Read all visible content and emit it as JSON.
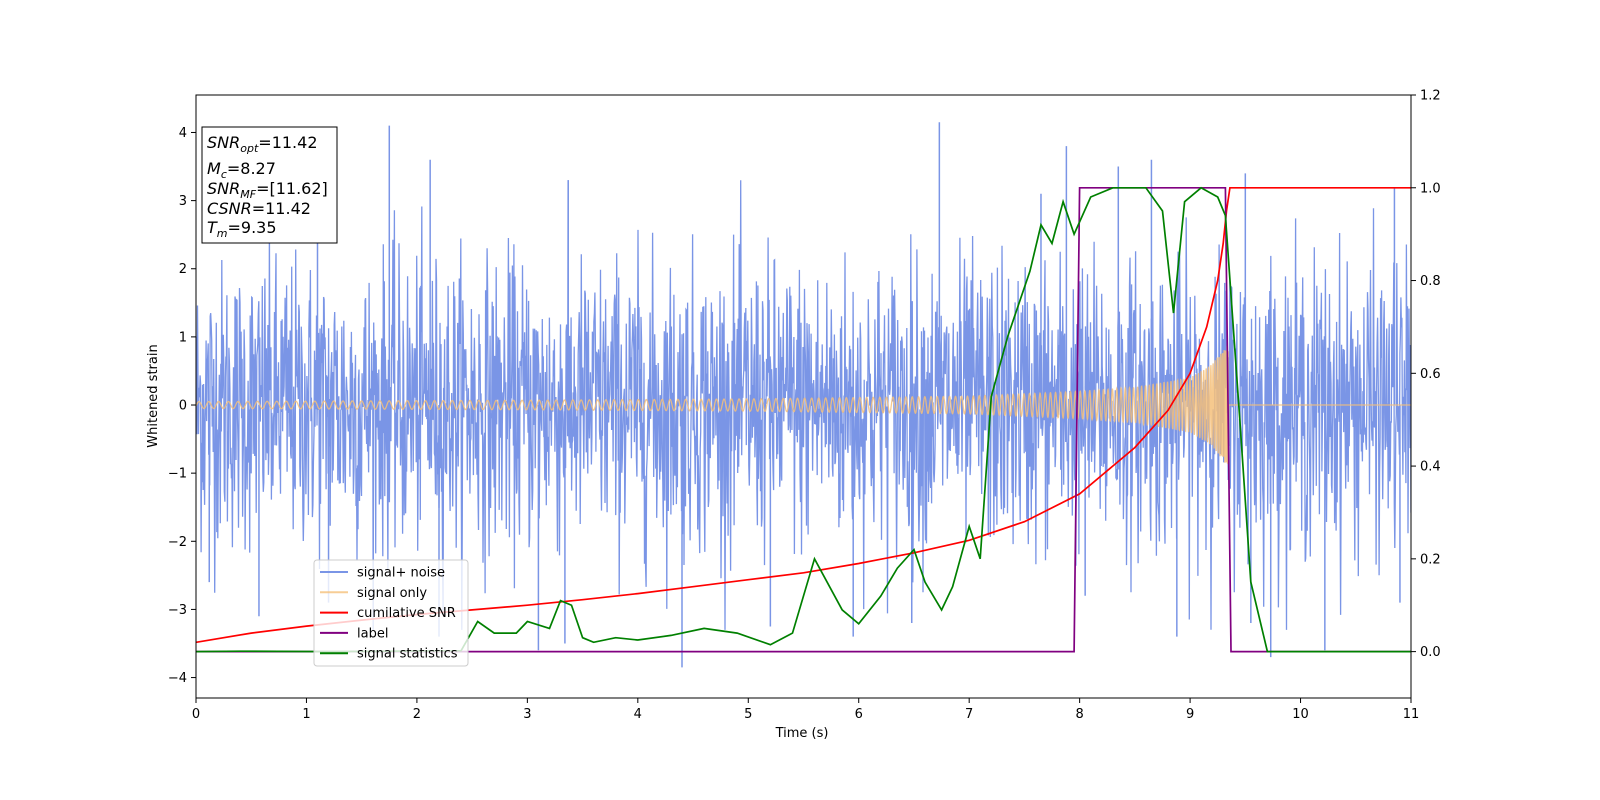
{
  "chart_data": {
    "type": "line",
    "xlabel": "Time (s)",
    "ylabel": "Whitened strain",
    "xlim": [
      0,
      11
    ],
    "ylim_left": [
      -4.3,
      4.55
    ],
    "ylim_right": [
      -0.1,
      1.2
    ],
    "x_ticks": [
      "0",
      "1",
      "2",
      "3",
      "4",
      "5",
      "6",
      "7",
      "8",
      "9",
      "10",
      "11"
    ],
    "y_ticks_left": [
      "−4",
      "−3",
      "−2",
      "−1",
      "0",
      "1",
      "2",
      "3",
      "4"
    ],
    "y_ticks_right": [
      "0.0",
      "0.2",
      "0.4",
      "0.6",
      "0.8",
      "1.0",
      "1.2"
    ],
    "grid": false,
    "legend_position": "lower-left",
    "annotation": {
      "snr_opt": {
        "sym": "SNR",
        "sub": "opt",
        "value": "=11.42"
      },
      "mc": {
        "sym": "M",
        "sub": "c",
        "value": "=8.27"
      },
      "snr_mf": {
        "sym": "SNR",
        "sub": "MF",
        "value": "=[11.62]"
      },
      "csnr": {
        "sym": "CSNR",
        "value": "=11.42"
      },
      "tm": {
        "sym": "T",
        "sub": "m",
        "value": "=9.35"
      }
    },
    "series": [
      {
        "name": "signal+ noise",
        "color": "#7a95e6",
        "axis": "left",
        "description": "whitened noise, std ~1.1 across full range",
        "spikes": [
          [
            0.12,
            -2.6
          ],
          [
            0.57,
            -3.1
          ],
          [
            1.1,
            2.9
          ],
          [
            1.2,
            -2.9
          ],
          [
            1.75,
            4.1
          ],
          [
            2.12,
            3.6
          ],
          [
            2.2,
            -3.4
          ],
          [
            3.1,
            -3.6
          ],
          [
            3.37,
            3.3
          ],
          [
            3.34,
            -3.5
          ],
          [
            4.4,
            -3.85
          ],
          [
            5.2,
            -3.25
          ],
          [
            5.95,
            -3.4
          ],
          [
            6.73,
            4.15
          ],
          [
            6.48,
            -3.2
          ],
          [
            7.65,
            3.1
          ],
          [
            7.88,
            3.8
          ],
          [
            8.05,
            -2.8
          ],
          [
            8.35,
            3.5
          ],
          [
            8.65,
            3.6
          ],
          [
            8.88,
            -3.4
          ],
          [
            9.5,
            3.4
          ],
          [
            9.55,
            -3.2
          ],
          [
            9.73,
            -3.7
          ],
          [
            10.22,
            -3.6
          ],
          [
            10.85,
            3.2
          ],
          [
            10.9,
            -2.9
          ]
        ]
      },
      {
        "name": "signal only",
        "color": "#f5c07a",
        "axis": "left",
        "description": "chirp from t=0 with amplitude growing until merger at 9.35 s, then ~0",
        "merger_time": 9.35,
        "amplitude_points": [
          [
            0,
            0.05
          ],
          [
            3,
            0.07
          ],
          [
            5,
            0.09
          ],
          [
            7,
            0.13
          ],
          [
            8,
            0.2
          ],
          [
            8.5,
            0.26
          ],
          [
            9,
            0.4
          ],
          [
            9.2,
            0.6
          ],
          [
            9.33,
            0.88
          ]
        ]
      },
      {
        "name": "cumilative SNR",
        "color": "#ff0000",
        "axis": "right",
        "points": [
          [
            0,
            0.02
          ],
          [
            0.5,
            0.04
          ],
          [
            1,
            0.055
          ],
          [
            1.5,
            0.068
          ],
          [
            2,
            0.08
          ],
          [
            2.5,
            0.09
          ],
          [
            3,
            0.1
          ],
          [
            3.5,
            0.112
          ],
          [
            4,
            0.125
          ],
          [
            4.5,
            0.14
          ],
          [
            5,
            0.155
          ],
          [
            5.5,
            0.17
          ],
          [
            6,
            0.19
          ],
          [
            6.5,
            0.213
          ],
          [
            7,
            0.24
          ],
          [
            7.5,
            0.28
          ],
          [
            8,
            0.34
          ],
          [
            8.5,
            0.44
          ],
          [
            8.8,
            0.52
          ],
          [
            9,
            0.6
          ],
          [
            9.15,
            0.7
          ],
          [
            9.25,
            0.8
          ],
          [
            9.3,
            0.88
          ],
          [
            9.33,
            0.95
          ],
          [
            9.36,
            1.0
          ],
          [
            11,
            1.0
          ]
        ]
      },
      {
        "name": "label",
        "color": "#800080",
        "axis": "right",
        "points": [
          [
            0,
            0
          ],
          [
            7.95,
            0
          ],
          [
            8.0,
            1
          ],
          [
            9.32,
            1
          ],
          [
            9.37,
            0
          ],
          [
            11,
            0
          ]
        ]
      },
      {
        "name": "signal statistics",
        "color": "#008000",
        "axis": "right",
        "points": [
          [
            0,
            0.0
          ],
          [
            0.4,
            0.001
          ],
          [
            1.2,
            0.0
          ],
          [
            2.4,
            0.002
          ],
          [
            2.55,
            0.065
          ],
          [
            2.7,
            0.04
          ],
          [
            2.9,
            0.04
          ],
          [
            3.0,
            0.065
          ],
          [
            3.2,
            0.05
          ],
          [
            3.3,
            0.11
          ],
          [
            3.4,
            0.1
          ],
          [
            3.5,
            0.03
          ],
          [
            3.6,
            0.02
          ],
          [
            3.8,
            0.03
          ],
          [
            4.0,
            0.025
          ],
          [
            4.3,
            0.035
          ],
          [
            4.6,
            0.05
          ],
          [
            4.9,
            0.04
          ],
          [
            5.2,
            0.015
          ],
          [
            5.4,
            0.04
          ],
          [
            5.6,
            0.2
          ],
          [
            5.85,
            0.09
          ],
          [
            6.0,
            0.06
          ],
          [
            6.2,
            0.12
          ],
          [
            6.35,
            0.18
          ],
          [
            6.5,
            0.22
          ],
          [
            6.6,
            0.15
          ],
          [
            6.75,
            0.09
          ],
          [
            6.85,
            0.14
          ],
          [
            7.0,
            0.27
          ],
          [
            7.1,
            0.2
          ],
          [
            7.2,
            0.55
          ],
          [
            7.35,
            0.68
          ],
          [
            7.55,
            0.82
          ],
          [
            7.65,
            0.92
          ],
          [
            7.75,
            0.88
          ],
          [
            7.85,
            0.97
          ],
          [
            7.95,
            0.9
          ],
          [
            8.1,
            0.98
          ],
          [
            8.3,
            1.0
          ],
          [
            8.6,
            1.0
          ],
          [
            8.75,
            0.95
          ],
          [
            8.85,
            0.73
          ],
          [
            8.95,
            0.97
          ],
          [
            9.1,
            1.0
          ],
          [
            9.25,
            0.98
          ],
          [
            9.32,
            0.94
          ],
          [
            9.45,
            0.5
          ],
          [
            9.55,
            0.15
          ],
          [
            9.7,
            0.0
          ],
          [
            11,
            0.0
          ]
        ]
      }
    ]
  }
}
